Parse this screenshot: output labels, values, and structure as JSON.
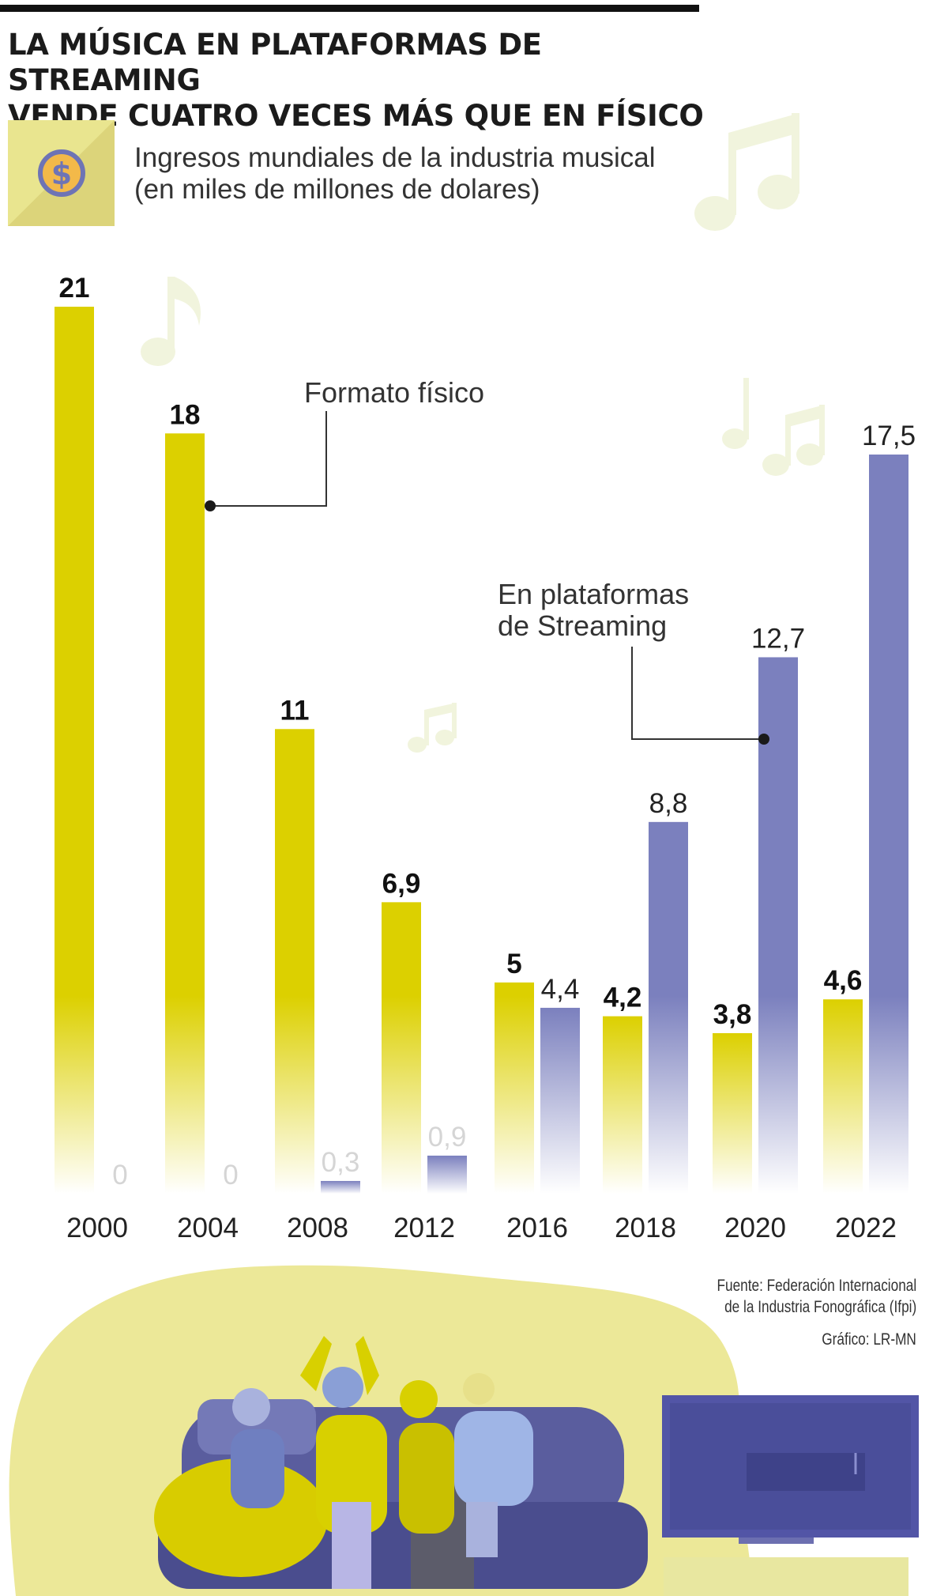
{
  "title": {
    "line1": "LA MÚSICA EN PLATAFORMAS DE STREAMING",
    "line2": "VENDE CUATRO VECES MÁS QUE EN FÍSICO"
  },
  "subtitle": {
    "line1": "Ingresos mundiales de la industria musical",
    "line2": "(en miles de millones de dolares)"
  },
  "icons": {
    "header": "dollar-coin-icon",
    "decor": "music-note-icon"
  },
  "annotations": {
    "physical": "Formato físico",
    "streaming_line1": "En plataformas",
    "streaming_line2": "de Streaming"
  },
  "source": {
    "line1": "Fuente: Federación Internacional",
    "line2": "de la Industria Fonográfica (Ifpi)"
  },
  "credit": "Gráfico: LR-MN",
  "colors": {
    "physical": "#dcd000",
    "streaming": "#7b80be",
    "title_rule": "#111111",
    "illustration_blob": "#ece898"
  },
  "chart_data": {
    "type": "bar",
    "categories": [
      "2000",
      "2004",
      "2008",
      "2012",
      "2016",
      "2018",
      "2020",
      "2022"
    ],
    "series": [
      {
        "name": "Formato físico",
        "values": [
          21,
          18,
          11,
          6.9,
          5,
          4.2,
          3.8,
          4.6
        ]
      },
      {
        "name": "En plataformas de Streaming",
        "values": [
          0,
          0,
          0.3,
          0.9,
          4.4,
          8.8,
          12.7,
          17.5
        ]
      }
    ],
    "value_labels": [
      [
        "21",
        "18",
        "11",
        "6,9",
        "5",
        "4,2",
        "3,8",
        "4,6"
      ],
      [
        "0",
        "0",
        "0,3",
        "0,9",
        "4,4",
        "8,8",
        "12,7",
        "17,5"
      ]
    ],
    "ylim": [
      0,
      21
    ],
    "grid": false,
    "legend": "annotations on bars"
  }
}
